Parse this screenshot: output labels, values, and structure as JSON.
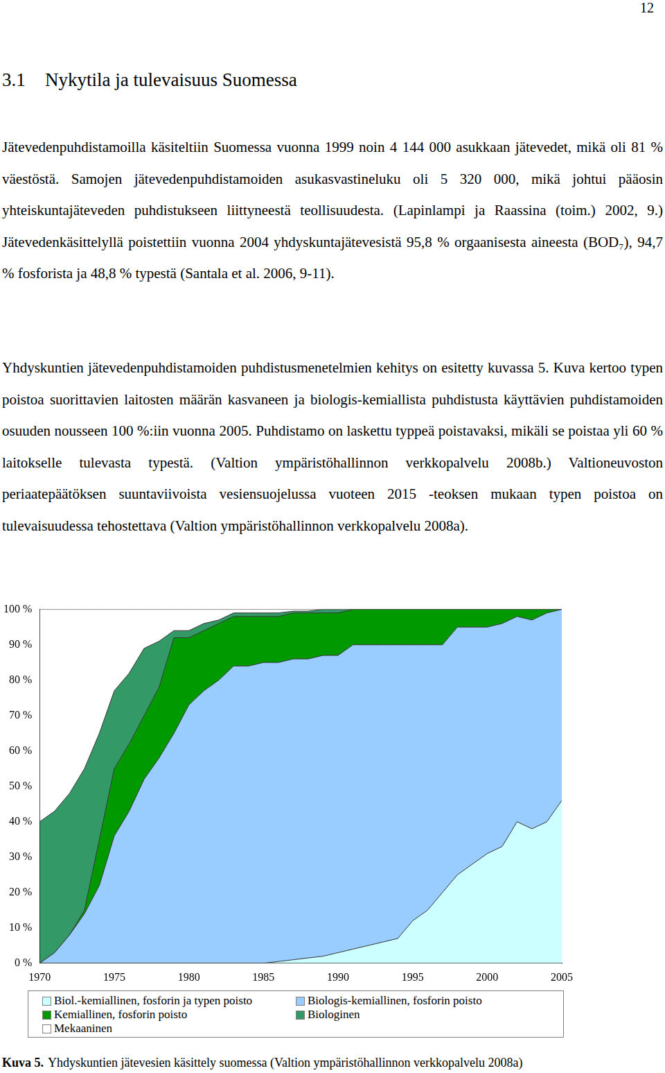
{
  "page_number": "12",
  "heading": {
    "number": "3.1",
    "title": "Nykytila ja tulevaisuus Suomessa"
  },
  "paragraphs": [
    "Jätevedenpuhdistamoilla käsiteltiin Suomessa vuonna 1999 noin 4 144 000 asukkaan jätevedet, mikä oli 81 % väestöstä. Samojen jätevedenpuhdistamoiden asukasvastineluku oli 5 320 000, mikä johtui pääosin yhteiskuntajäteveden puhdistukseen liittyneestä teollisuudesta. (Lapinlampi ja Raassina (toim.) 2002, 9.) Jätevedenkäsittelyllä poistettiin vuonna 2004 yhdyskuntajätevesistä 95,8 % orgaanisesta aineesta (BOD₇), 94,7 % fosforista ja 48,8 % typestä (Santala et al. 2006, 9-11).",
    "Yhdyskuntien jätevedenpuhdistamoiden puhdistusmenetelmien kehitys on esitetty kuvassa 5. Kuva kertoo typen poistoa suorittavien laitosten määrän kasvaneen ja biologis-kemiallista puhdistusta käyttävien puhdistamoiden osuuden nousseen 100 %:iin vuonna 2005. Puhdistamo on laskettu typpeä poistavaksi, mikäli se poistaa yli 60 % laitokselle tulevasta typestä. (Valtion ympäristöhallinnon verkkopalvelu 2008b.) Valtioneuvoston periaatepäätöksen suuntaviivoista vesiensuojelussa vuoteen 2015 -teoksen mukaan typen poistoa on tulevaisuudessa tehostettava (Valtion ympäristöhallinnon verkkopalvelu 2008a)."
  ],
  "chart_data": {
    "type": "area",
    "stacked": true,
    "grid": false,
    "legend": "bottom",
    "x": [
      1970,
      1971,
      1972,
      1973,
      1974,
      1975,
      1976,
      1977,
      1978,
      1979,
      1980,
      1981,
      1982,
      1983,
      1984,
      1985,
      1986,
      1987,
      1988,
      1989,
      1990,
      1991,
      1992,
      1993,
      1994,
      1995,
      1996,
      1997,
      1998,
      1999,
      2000,
      2001,
      2002,
      2003,
      2004,
      2005
    ],
    "xlim": [
      1970,
      2005
    ],
    "xticks": [
      1970,
      1975,
      1980,
      1985,
      1990,
      1995,
      2000,
      2005
    ],
    "ylim": [
      0,
      100
    ],
    "yticks": [
      {
        "value": 0,
        "label": "0 %"
      },
      {
        "value": 10,
        "label": "10 %"
      },
      {
        "value": 20,
        "label": "20 %"
      },
      {
        "value": 30,
        "label": "30 %"
      },
      {
        "value": 40,
        "label": "40 %"
      },
      {
        "value": 50,
        "label": "50 %"
      },
      {
        "value": 60,
        "label": "60 %"
      },
      {
        "value": 70,
        "label": "70 %"
      },
      {
        "value": 80,
        "label": "80 %"
      },
      {
        "value": 90,
        "label": "90 %"
      },
      {
        "value": 100,
        "label": "100 %"
      }
    ],
    "series": [
      {
        "name": "Biol.-kemiallinen, fosforin ja typen poisto",
        "color": "#ccffff",
        "values": [
          0,
          0,
          0,
          0,
          0,
          0,
          0,
          0,
          0,
          0,
          0,
          0,
          0,
          0,
          0,
          0,
          0.5,
          1,
          1.5,
          2,
          3,
          4,
          5,
          6,
          7,
          12,
          15,
          20,
          25,
          28,
          31,
          33,
          40,
          38,
          40,
          46
        ]
      },
      {
        "name": "Biologis-kemiallinen, fosforin poisto",
        "color": "#99ccff",
        "values": [
          0,
          3,
          8,
          14,
          22,
          36,
          43,
          52,
          58,
          65,
          73,
          77,
          80,
          84,
          84,
          85,
          84.5,
          85,
          84.5,
          85,
          84,
          86,
          85,
          84,
          83,
          78,
          75,
          70,
          70,
          67,
          64,
          63,
          58,
          59,
          59,
          54
        ]
      },
      {
        "name": "Kemiallinen, fosforin poisto",
        "color": "#009900",
        "values": [
          0,
          0,
          0,
          1,
          13,
          19,
          19,
          18,
          20,
          27,
          19,
          17,
          16,
          14,
          14,
          13,
          13,
          13,
          13,
          12,
          12,
          10,
          10,
          10,
          10,
          10,
          10,
          10,
          5,
          5,
          5,
          4,
          2,
          3,
          1,
          0
        ]
      },
      {
        "name": "Biologinen",
        "color": "#339966",
        "values": [
          40,
          40,
          40,
          40,
          30,
          22,
          20,
          19,
          13,
          2,
          2,
          2,
          1,
          1,
          1,
          1,
          1,
          0.5,
          0.5,
          1,
          1,
          0,
          0,
          0,
          0,
          0,
          0,
          0,
          0,
          0,
          0,
          0,
          0,
          0,
          0,
          0
        ]
      },
      {
        "name": "Mekaaninen",
        "color": "#ffffff",
        "values": [
          60,
          57,
          52,
          45,
          35,
          23,
          18,
          11,
          9,
          6,
          6,
          4,
          3,
          1,
          1,
          1,
          1,
          0.5,
          0.5,
          0,
          0,
          0,
          0,
          0,
          0,
          0,
          0,
          0,
          0,
          0,
          0,
          0,
          0,
          0,
          0,
          0
        ]
      }
    ]
  },
  "caption": {
    "label": "Kuva 5.",
    "text": "Yhdyskuntien jätevesien käsittely suomessa (Valtion ympäristöhallinnon verkkopalvelu 2008a)"
  }
}
